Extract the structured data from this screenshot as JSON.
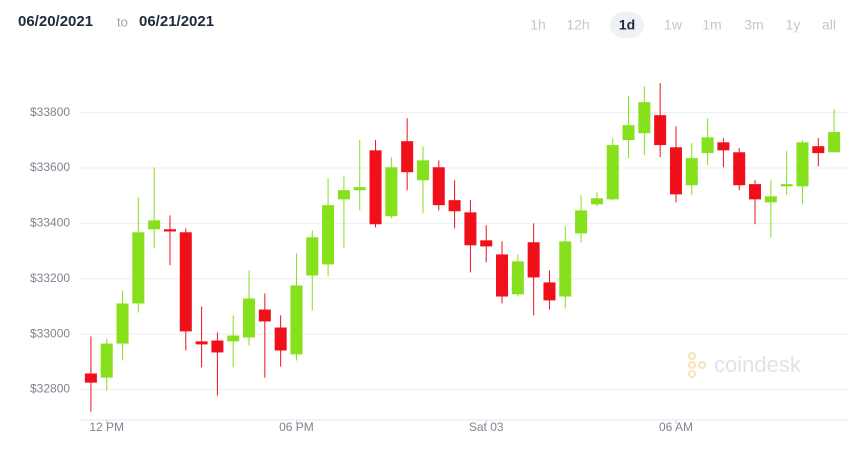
{
  "header": {
    "date_from": "06/20/2021",
    "date_separator": "to",
    "date_to": "06/21/2021",
    "ranges": [
      "1h",
      "12h",
      "1d",
      "1w",
      "1m",
      "3m",
      "1y",
      "all"
    ],
    "active_range_index": 2
  },
  "watermark": "coindesk",
  "chart_data": {
    "type": "candlestick",
    "categories": [
      null,
      "12 PM",
      null,
      null,
      null,
      null,
      null,
      null,
      null,
      null,
      null,
      null,
      null,
      "06 PM",
      null,
      null,
      null,
      null,
      null,
      null,
      null,
      null,
      null,
      null,
      null,
      "Sat 03",
      null,
      null,
      null,
      null,
      null,
      null,
      null,
      null,
      null,
      null,
      null,
      "06 AM",
      null,
      null,
      null,
      null,
      null,
      null,
      null,
      null,
      null,
      null
    ],
    "open": [
      32858,
      32843,
      32966,
      33111,
      33379,
      33379,
      33368,
      32974,
      32977,
      32974,
      32988,
      33089,
      33024,
      32927,
      33212,
      33252,
      33487,
      33520,
      33664,
      33426,
      33697,
      33556,
      33603,
      33484,
      33440,
      33339,
      33288,
      33144,
      33332,
      33187,
      33136,
      33364,
      33469,
      33487,
      33701,
      33726,
      33791,
      33675,
      33538,
      33654,
      33693,
      33657,
      33542,
      33476,
      33534,
      33534,
      33679,
      33657
    ],
    "high": [
      32992,
      32984,
      33158,
      33494,
      33603,
      33429,
      33382,
      33100,
      33006,
      33068,
      33230,
      33147,
      33068,
      33292,
      33375,
      33563,
      33570,
      33701,
      33701,
      33639,
      33780,
      33679,
      33628,
      33556,
      33484,
      33393,
      33335,
      33288,
      33400,
      33230,
      33390,
      33502,
      33513,
      33708,
      33860,
      33896,
      33907,
      33751,
      33690,
      33780,
      33708,
      33672,
      33556,
      33556,
      33661,
      33701,
      33708,
      33813
    ],
    "low": [
      32720,
      32796,
      32905,
      33078,
      33310,
      33249,
      32941,
      32880,
      32778,
      32880,
      32959,
      32843,
      32883,
      32905,
      33086,
      33209,
      33310,
      33447,
      33386,
      33418,
      33520,
      33437,
      33447,
      33382,
      33223,
      33259,
      33111,
      33136,
      33068,
      33089,
      33093,
      33332,
      33462,
      33484,
      33636,
      33646,
      33639,
      33476,
      33502,
      33610,
      33603,
      33520,
      33397,
      33350,
      33502,
      33469,
      33606,
      33657
    ],
    "close": [
      32825,
      32966,
      33111,
      33368,
      33411,
      33371,
      33010,
      32963,
      32934,
      32995,
      33129,
      33046,
      32941,
      33176,
      33350,
      33466,
      33520,
      33531,
      33397,
      33603,
      33585,
      33628,
      33466,
      33444,
      33321,
      33317,
      33136,
      33263,
      33205,
      33122,
      33335,
      33447,
      33491,
      33683,
      33755,
      33838,
      33683,
      33505,
      33636,
      33711,
      33664,
      33538,
      33487,
      33498,
      33542,
      33693,
      33654,
      33730
    ],
    "up_color": "#86e01c",
    "down_color": "#f0101a",
    "ylim": [
      32690,
      33900
    ],
    "yticks": [
      {
        "value": 32800,
        "label": "$32800"
      },
      {
        "value": 33000,
        "label": "$33000"
      },
      {
        "value": 33200,
        "label": "$33200"
      },
      {
        "value": 33400,
        "label": "$33400"
      },
      {
        "value": 33600,
        "label": "$33600"
      },
      {
        "value": 33800,
        "label": "$33800"
      }
    ],
    "grid": true
  }
}
